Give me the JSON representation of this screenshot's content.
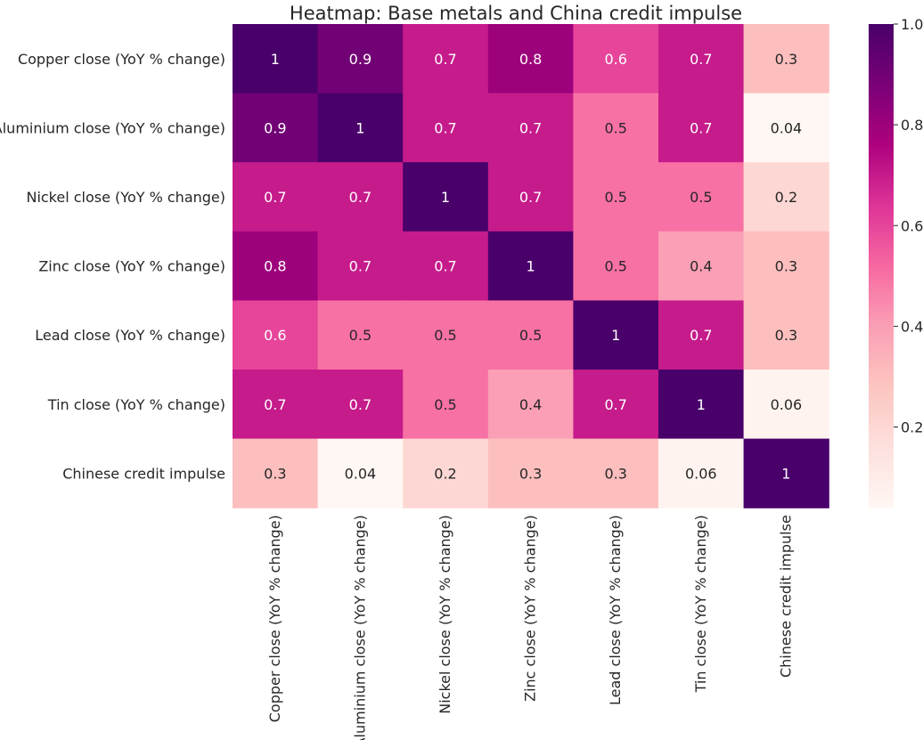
{
  "chart_data": {
    "type": "heatmap",
    "title": "Heatmap: Base metals and China credit impulse",
    "row_labels": [
      "Copper close (YoY % change)",
      "Aluminium close (YoY % change)",
      "Nickel close (YoY % change)",
      "Zinc close (YoY % change)",
      "Lead close (YoY % change)",
      "Tin close (YoY % change)",
      "Chinese credit impulse"
    ],
    "col_labels": [
      "Copper close (YoY % change)",
      "Aluminium close (YoY % change)",
      "Nickel close (YoY % change)",
      "Zinc close (YoY % change)",
      "Lead close (YoY % change)",
      "Tin close (YoY % change)",
      "Chinese credit impulse"
    ],
    "values": [
      [
        1,
        0.9,
        0.7,
        0.8,
        0.6,
        0.7,
        0.3
      ],
      [
        0.9,
        1,
        0.7,
        0.7,
        0.5,
        0.7,
        0.04
      ],
      [
        0.7,
        0.7,
        1,
        0.7,
        0.5,
        0.5,
        0.2
      ],
      [
        0.8,
        0.7,
        0.7,
        1,
        0.5,
        0.4,
        0.3
      ],
      [
        0.6,
        0.5,
        0.5,
        0.5,
        1,
        0.7,
        0.3
      ],
      [
        0.7,
        0.7,
        0.5,
        0.4,
        0.7,
        1,
        0.06
      ],
      [
        0.3,
        0.04,
        0.2,
        0.3,
        0.3,
        0.06,
        1
      ]
    ],
    "cell_labels": [
      [
        "1",
        "0.9",
        "0.7",
        "0.8",
        "0.6",
        "0.7",
        "0.3"
      ],
      [
        "0.9",
        "1",
        "0.7",
        "0.7",
        "0.5",
        "0.7",
        "0.04"
      ],
      [
        "0.7",
        "0.7",
        "1",
        "0.7",
        "0.5",
        "0.5",
        "0.2"
      ],
      [
        "0.8",
        "0.7",
        "0.7",
        "1",
        "0.5",
        "0.4",
        "0.3"
      ],
      [
        "0.6",
        "0.5",
        "0.5",
        "0.5",
        "1",
        "0.7",
        "0.3"
      ],
      [
        "0.7",
        "0.7",
        "0.5",
        "0.4",
        "0.7",
        "1",
        "0.06"
      ],
      [
        "0.3",
        "0.04",
        "0.2",
        "0.3",
        "0.3",
        "0.06",
        "1"
      ]
    ],
    "colormap": "RdPu",
    "color_range": [
      0.04,
      1.0
    ],
    "colorbar": {
      "ticks": [
        0.2,
        0.4,
        0.6,
        0.8,
        1.0
      ],
      "tick_labels": [
        "0.2",
        "0.4",
        "0.6",
        "0.8",
        "1.0"
      ],
      "placement": "right"
    },
    "grid": false,
    "colors": {
      "cmap_stops": [
        "#fff7f3",
        "#fde0dd",
        "#fcc5c0",
        "#fa9fb5",
        "#f768a1",
        "#dd3497",
        "#ae017e",
        "#7a0177",
        "#49006a"
      ],
      "text_dark": "#262626",
      "text_light": "#ffffff"
    }
  }
}
